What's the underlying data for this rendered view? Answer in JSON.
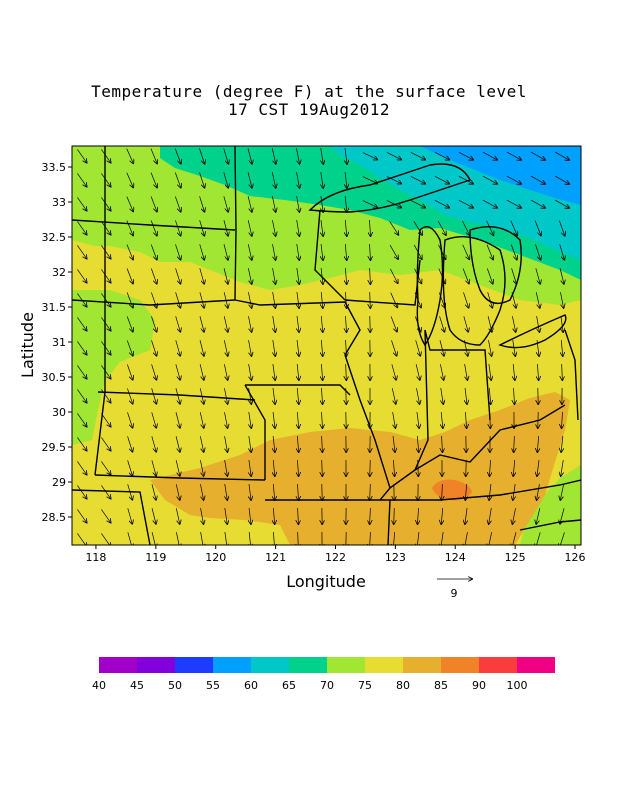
{
  "title": {
    "line1": "Temperature (degree F) at the surface level",
    "line2": "17 CST 19Aug2012"
  },
  "axes": {
    "xlabel": "Longitude",
    "ylabel": "Latitude",
    "x_ticks": [
      "118",
      "119",
      "120",
      "121",
      "122",
      "123",
      "124",
      "125",
      "126"
    ],
    "y_ticks": [
      "33.5",
      "33",
      "32.5",
      "32",
      "31.5",
      "31",
      "30.5",
      "30",
      "29.5",
      "29",
      "28.5"
    ],
    "x_range": [
      117.6,
      126.1
    ],
    "y_range": [
      28.1,
      33.8
    ]
  },
  "vector_reference": {
    "label": "9"
  },
  "colorbar": {
    "colors": [
      "#a000c8",
      "#8200dc",
      "#1e3cff",
      "#00a0ff",
      "#00c8c8",
      "#00d28c",
      "#a0e632",
      "#e6dc32",
      "#e6af2d",
      "#f08228",
      "#fa3c3c",
      "#f00082"
    ],
    "labels": [
      "40",
      "45",
      "50",
      "55",
      "60",
      "65",
      "70",
      "75",
      "80",
      "85",
      "90",
      "100"
    ]
  },
  "fill_colors": {
    "cool_blue": "#00a0ff",
    "cyan": "#00c8c8",
    "teal_green": "#00d28c",
    "light_green": "#a0e632",
    "yellow": "#e6dc32",
    "orange": "#e6af2d",
    "dark_orange": "#f08228"
  }
}
